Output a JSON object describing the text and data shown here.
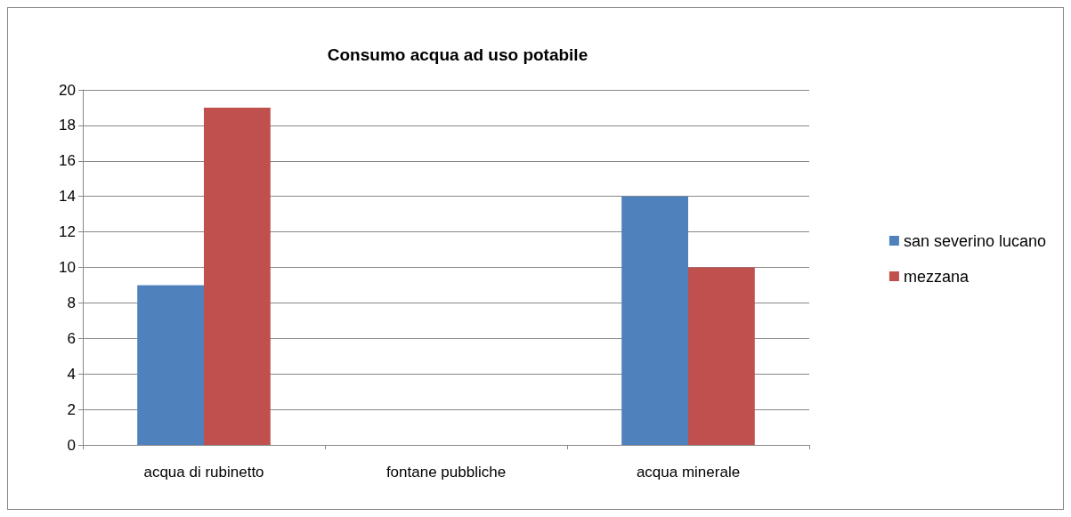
{
  "chart_data": {
    "type": "bar",
    "title": "Consumo acqua ad uso potabile",
    "categories": [
      "acqua di rubinetto",
      "fontane pubbliche",
      "acqua minerale"
    ],
    "series": [
      {
        "name": "san severino lucano",
        "color": "#4f81bd",
        "values": [
          9,
          0,
          14
        ]
      },
      {
        "name": "mezzana",
        "color": "#c0504d",
        "values": [
          19,
          0,
          10
        ]
      }
    ],
    "ylim": [
      0,
      20
    ],
    "yticks": [
      0,
      2,
      4,
      6,
      8,
      10,
      12,
      14,
      16,
      18,
      20
    ],
    "grid": "y",
    "legend": "right"
  }
}
